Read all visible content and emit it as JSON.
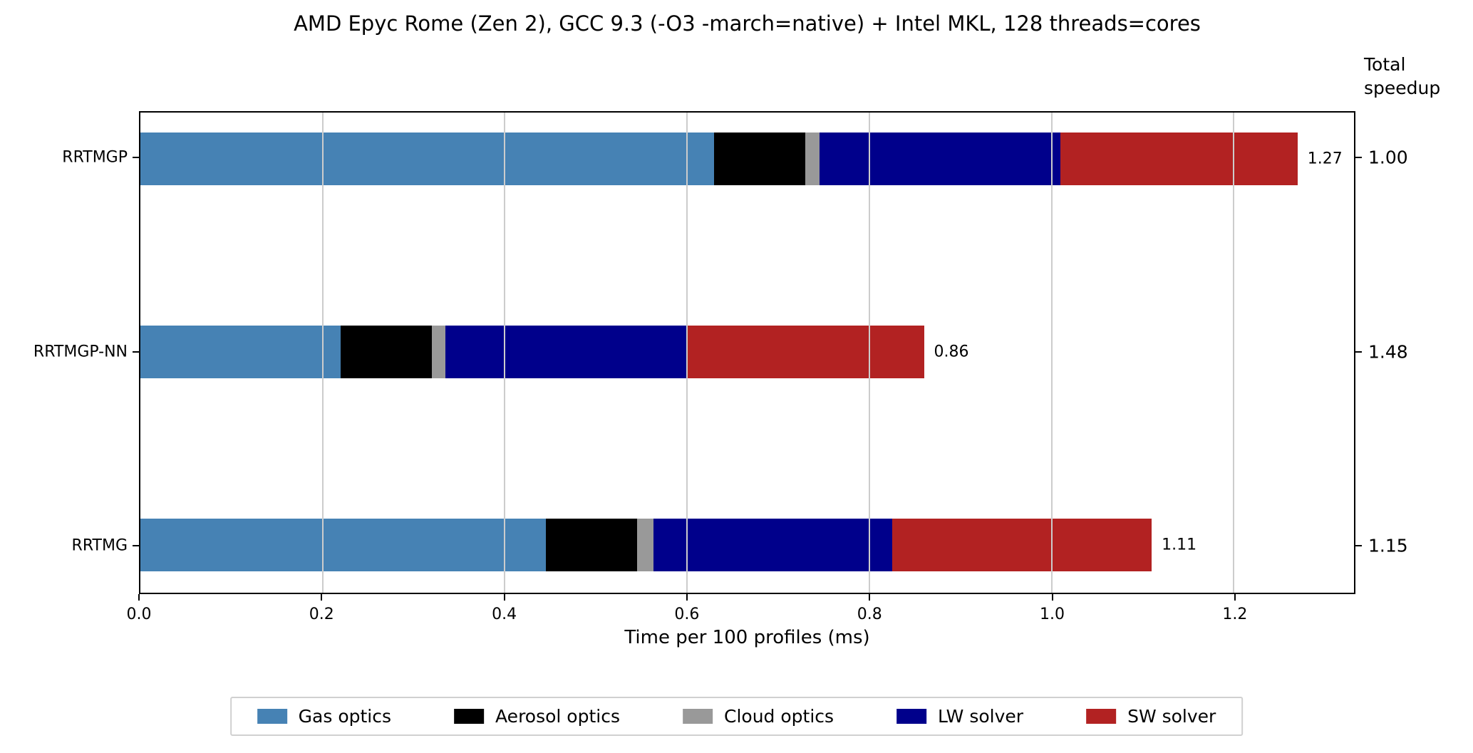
{
  "title": "AMD Epyc Rome (Zen 2), GCC 9.3 (-O3 -march=native) + Intel MKL, 128 threads=cores",
  "right_axis": {
    "header": "Total\nspeedup"
  },
  "chart_data": {
    "type": "bar",
    "orientation": "horizontal",
    "stacked": true,
    "title": "AMD Epyc Rome (Zen 2), GCC 9.3 (-O3 -march=native) + Intel MKL, 128 threads=cores",
    "xlabel": "Time per 100 profiles (ms)",
    "categories": [
      "RRTMGP",
      "RRTMGP-NN",
      "RRTMG"
    ],
    "series": [
      {
        "name": "Gas optics",
        "color": "#4682b4",
        "values": [
          0.63,
          0.22,
          0.445
        ]
      },
      {
        "name": "Aerosol optics",
        "color": "#000000",
        "values": [
          0.1,
          0.1,
          0.1
        ]
      },
      {
        "name": "Cloud optics",
        "color": "#999999",
        "values": [
          0.015,
          0.015,
          0.018
        ]
      },
      {
        "name": "LW solver",
        "color": "#00008b",
        "values": [
          0.265,
          0.265,
          0.262
        ]
      },
      {
        "name": "SW solver",
        "color": "#b22222",
        "values": [
          0.26,
          0.26,
          0.285
        ]
      }
    ],
    "bar_total_labels": [
      "1.27",
      "0.86",
      "1.11"
    ],
    "total_speedup": [
      "1.00",
      "1.48",
      "1.15"
    ],
    "x_ticks": [
      0.0,
      0.2,
      0.4,
      0.6,
      0.8,
      1.0,
      1.2
    ],
    "x_tick_labels": [
      "0.0",
      "0.2",
      "0.4",
      "0.6",
      "0.8",
      "1.0",
      "1.2"
    ],
    "xlim": [
      0,
      1.332
    ],
    "grid": true,
    "grid_axis": "x",
    "legend_position": "bottom",
    "legend_entries": [
      "Gas optics",
      "Aerosol optics",
      "Cloud optics",
      "LW solver",
      "SW solver"
    ]
  }
}
